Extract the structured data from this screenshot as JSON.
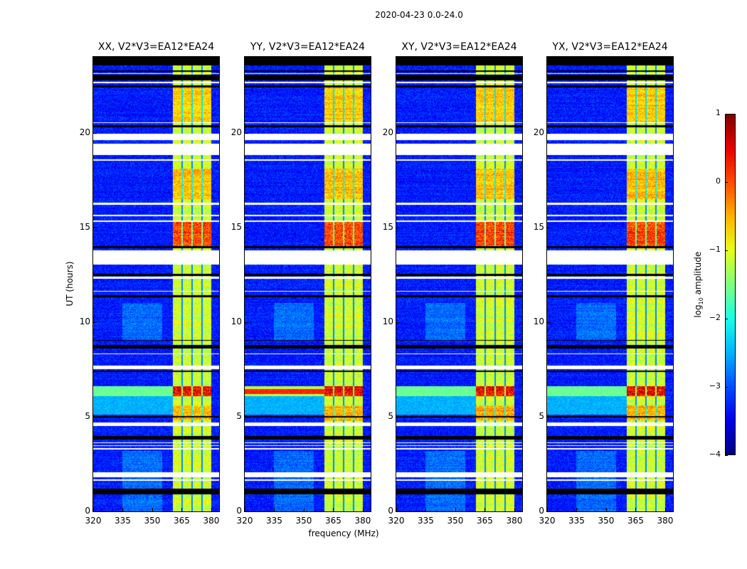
{
  "chart_data": {
    "type": "heatmap",
    "title": "2020-04-23 0.0-24.0",
    "xlabel": "frequency (MHz)",
    "ylabel": "UT (hours)",
    "xlim": [
      320,
      384
    ],
    "ylim": [
      0,
      24
    ],
    "xticks": [
      320,
      335,
      350,
      365,
      380
    ],
    "yticks": [
      0,
      5,
      10,
      15,
      20
    ],
    "panels": [
      {
        "title": "XX, V2*V3=EA12*EA24",
        "broadband_rfi_hours": [
          6.1,
          6.6
        ],
        "broadband": false
      },
      {
        "title": "YY, V2*V3=EA12*EA24",
        "broadband_rfi_hours": [
          6.1,
          6.6
        ],
        "broadband": true
      },
      {
        "title": "XY, V2*V3=EA12*EA24",
        "broadband_rfi_hours": [
          6.1,
          6.6
        ],
        "broadband": false
      },
      {
        "title": "YX, V2*V3=EA12*EA24",
        "broadband_rfi_hours": [
          6.1,
          6.6
        ],
        "broadband": false
      }
    ],
    "bright_band_mhz": [
      360.5,
      380.2
    ],
    "band_gaps_mhz": [
      365.2,
      370.2,
      375.2
    ],
    "strong_rfi_hours": [
      [
        14.0,
        15.3
      ],
      [
        6.1,
        6.6
      ],
      [
        20.6,
        22.4
      ],
      [
        16.5,
        18.1
      ],
      [
        4.8,
        5.6
      ]
    ],
    "flagged_white_hours": [
      [
        1.6,
        1.7
      ],
      [
        1.8,
        2.05
      ],
      [
        3.25,
        3.35
      ],
      [
        3.45,
        3.5
      ],
      [
        3.6,
        3.65
      ],
      [
        4.5,
        4.7
      ],
      [
        7.5,
        7.7
      ],
      [
        8.3,
        8.35
      ],
      [
        11.6,
        11.65
      ],
      [
        12.3,
        12.4
      ],
      [
        13.05,
        13.8
      ],
      [
        15.3,
        15.35
      ],
      [
        15.6,
        15.65
      ],
      [
        16.2,
        16.3
      ],
      [
        18.5,
        18.6
      ],
      [
        18.8,
        19.4
      ],
      [
        19.6,
        19.95
      ],
      [
        20.5,
        20.55
      ],
      [
        22.6,
        22.7
      ],
      [
        23.1,
        23.15
      ]
    ],
    "flagged_black_hours": [
      [
        0.9,
        1.2
      ],
      [
        2.0,
        2.05
      ],
      [
        3.8,
        4.0
      ],
      [
        4.95,
        5.05
      ],
      [
        7.35,
        7.45
      ],
      [
        8.6,
        8.8
      ],
      [
        9.0,
        9.05
      ],
      [
        11.3,
        11.4
      ],
      [
        12.45,
        12.55
      ],
      [
        13.9,
        14.0
      ],
      [
        20.3,
        20.4
      ],
      [
        22.4,
        22.5
      ],
      [
        22.75,
        23.05
      ],
      [
        23.2,
        23.3
      ],
      [
        23.55,
        24.0
      ]
    ],
    "colorbar": {
      "label_prefix": "log",
      "label_sub": "10",
      "label_suffix": " amplitude",
      "range": [
        -4,
        1
      ],
      "ticks": [
        -4,
        -3,
        -2,
        -1,
        0,
        1
      ],
      "colormap": "jet"
    }
  }
}
